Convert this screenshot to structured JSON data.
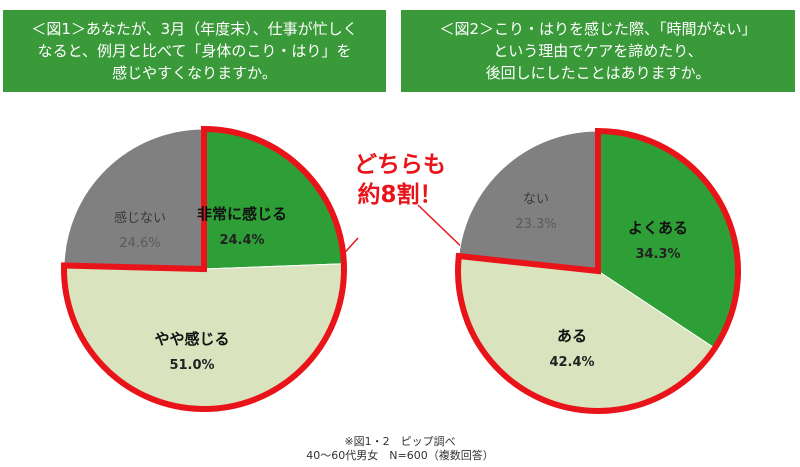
{
  "header": {
    "left": "＜図1＞あなたが、3月（年度末）、仕事が忙しく\nなると、例月と比べて「身体のこり・はり」を\n感じやすくなりますか。",
    "right": "＜図2＞こり・はりを感じた際、「時間がない」\nという理由でケアを諦めたり、\n後回しにしたことはありますか。"
  },
  "callout": "どちらも\n約8割！",
  "footnote": {
    "line1": "※図1・2　ピップ調べ",
    "line2": "40～60代男女　N=600（複数回答）"
  },
  "colors": {
    "green": "#2e9e37",
    "light_green": "#d9e4bf",
    "gray": "#808080",
    "red": "#e8141a",
    "header_green": "#3a9a3a"
  },
  "chart_data": [
    {
      "type": "pie",
      "title": "",
      "slices": [
        {
          "label": "非常に感じる",
          "value": 24.4,
          "value_label": "24.4%",
          "color": "#2e9e37",
          "highlighted": true
        },
        {
          "label": "やや感じる",
          "value": 51.0,
          "value_label": "51.0%",
          "color": "#d9e4bf",
          "highlighted": true
        },
        {
          "label": "感じない",
          "value": 24.6,
          "value_label": "24.6%",
          "color": "#808080",
          "highlighted": false
        }
      ]
    },
    {
      "type": "pie",
      "title": "",
      "slices": [
        {
          "label": "よくある",
          "value": 34.3,
          "value_label": "34.3%",
          "color": "#2e9e37",
          "highlighted": true
        },
        {
          "label": "ある",
          "value": 42.4,
          "value_label": "42.4%",
          "color": "#d9e4bf",
          "highlighted": true
        },
        {
          "label": "ない",
          "value": 23.3,
          "value_label": "23.3%",
          "color": "#808080",
          "highlighted": false
        }
      ]
    }
  ]
}
